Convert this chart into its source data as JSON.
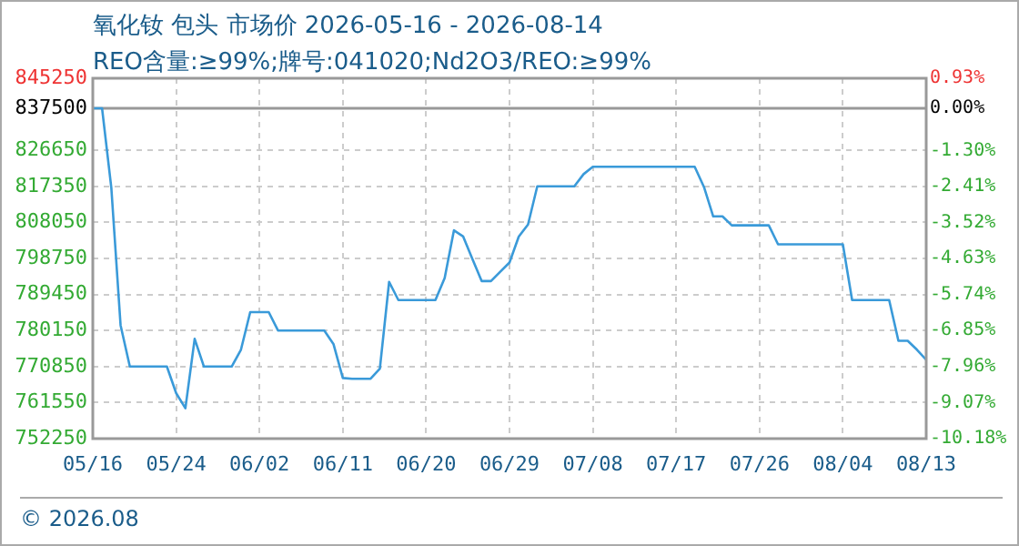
{
  "chart_data": {
    "type": "line",
    "title": "氧化钕 包头 市场价 2026-05-16 - 2026-08-14",
    "subtitle": "REO含量:≥99%;牌号:041020;Nd2O3/REO:≥99%",
    "annotations": [
      "© 2026.08"
    ],
    "categories": [
      "05/16",
      null,
      null,
      null,
      null,
      null,
      null,
      null,
      null,
      "05/24",
      null,
      null,
      null,
      null,
      null,
      null,
      null,
      null,
      "06/02",
      null,
      null,
      null,
      null,
      null,
      null,
      null,
      null,
      "06/11",
      null,
      null,
      null,
      null,
      null,
      null,
      null,
      null,
      "06/20",
      null,
      null,
      null,
      null,
      null,
      null,
      null,
      null,
      "06/29",
      null,
      null,
      null,
      null,
      null,
      null,
      null,
      null,
      "07/08",
      null,
      null,
      null,
      null,
      null,
      null,
      null,
      null,
      "07/17",
      null,
      null,
      null,
      null,
      null,
      null,
      null,
      null,
      "07/26",
      null,
      null,
      null,
      null,
      null,
      null,
      null,
      null,
      "08/04",
      null,
      null,
      null,
      null,
      null,
      null,
      null,
      null,
      "08/13"
    ],
    "series": [
      {
        "color": "#3a9ad9",
        "values": [
          837500,
          837500,
          817000,
          781500,
          770850,
          770850,
          770850,
          770850,
          770850,
          764000,
          760100,
          778000,
          770850,
          770850,
          770850,
          770850,
          775200,
          784900,
          784900,
          784900,
          780150,
          780150,
          780150,
          780150,
          780150,
          780150,
          776600,
          767900,
          767700,
          767700,
          767700,
          770300,
          792700,
          788000,
          788000,
          788000,
          788000,
          788000,
          793700,
          806000,
          804400,
          798600,
          792900,
          792900,
          795300,
          797700,
          804400,
          807500,
          817350,
          817350,
          817350,
          817350,
          817350,
          820500,
          822400,
          822400,
          822400,
          822400,
          822400,
          822400,
          822400,
          822400,
          822400,
          822400,
          822400,
          822400,
          817200,
          809600,
          809600,
          807300,
          807300,
          807300,
          807300,
          807300,
          802400,
          802400,
          802400,
          802400,
          802400,
          802400,
          802400,
          802400,
          788000,
          788000,
          788000,
          788000,
          788000,
          777500,
          777500,
          775200,
          772600
        ]
      }
    ],
    "ylim": [
      752250,
      845250
    ],
    "yticks": [
      752250,
      761550,
      770850,
      780150,
      789450,
      798750,
      808050,
      817350,
      826650,
      837500,
      845250
    ],
    "y2lim": [
      -10.18,
      0.93
    ],
    "y2ticks": [
      {
        "value": -10.18,
        "label": "-10.18%"
      },
      {
        "value": -9.07,
        "label": "-9.07%"
      },
      {
        "value": -7.96,
        "label": "-7.96%"
      },
      {
        "value": -6.85,
        "label": "-6.85%"
      },
      {
        "value": -5.74,
        "label": "-5.74%"
      },
      {
        "value": -4.63,
        "label": "-4.63%"
      },
      {
        "value": -3.52,
        "label": "-3.52%"
      },
      {
        "value": -2.41,
        "label": "-2.41%"
      },
      {
        "value": -1.3,
        "label": "-1.30%"
      },
      {
        "value": 0,
        "label": "0.00%"
      },
      {
        "value": 0.93,
        "label": "0.93%"
      }
    ],
    "ref_lines": [
      {
        "axis": "y",
        "value": 837500,
        "color": "#999999"
      }
    ],
    "grid": true,
    "legend": false,
    "marker": "none",
    "line_style": "solid"
  }
}
